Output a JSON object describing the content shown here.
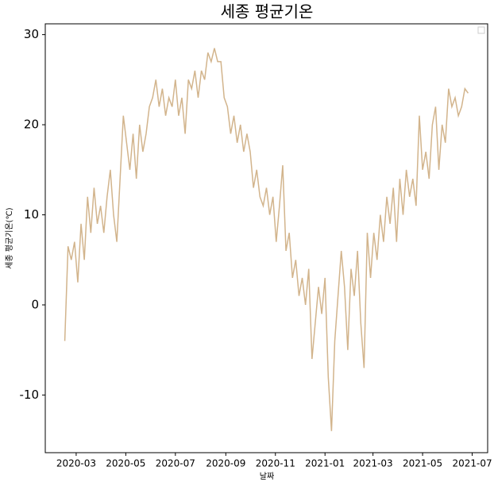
{
  "chart_data": {
    "type": "line",
    "title": "세종 평균기온",
    "xlabel": "날짜",
    "ylabel": "세종 평균기온(℃)",
    "x": [
      "2020-02-16",
      "2020-02-20",
      "2020-02-24",
      "2020-02-28",
      "2020-03-03",
      "2020-03-07",
      "2020-03-11",
      "2020-03-15",
      "2020-03-19",
      "2020-03-23",
      "2020-03-27",
      "2020-03-31",
      "2020-04-04",
      "2020-04-08",
      "2020-04-12",
      "2020-04-16",
      "2020-04-20",
      "2020-04-24",
      "2020-04-28",
      "2020-05-02",
      "2020-05-06",
      "2020-05-10",
      "2020-05-14",
      "2020-05-18",
      "2020-05-22",
      "2020-05-26",
      "2020-05-30",
      "2020-06-03",
      "2020-06-07",
      "2020-06-11",
      "2020-06-15",
      "2020-06-19",
      "2020-06-23",
      "2020-06-27",
      "2020-07-01",
      "2020-07-05",
      "2020-07-09",
      "2020-07-13",
      "2020-07-17",
      "2020-07-21",
      "2020-07-25",
      "2020-07-29",
      "2020-08-02",
      "2020-08-06",
      "2020-08-10",
      "2020-08-14",
      "2020-08-18",
      "2020-08-22",
      "2020-08-26",
      "2020-08-30",
      "2020-09-03",
      "2020-09-07",
      "2020-09-11",
      "2020-09-15",
      "2020-09-19",
      "2020-09-23",
      "2020-09-27",
      "2020-10-01",
      "2020-10-05",
      "2020-10-09",
      "2020-10-13",
      "2020-10-17",
      "2020-10-21",
      "2020-10-25",
      "2020-10-29",
      "2020-11-02",
      "2020-11-06",
      "2020-11-10",
      "2020-11-14",
      "2020-11-18",
      "2020-11-22",
      "2020-11-26",
      "2020-11-30",
      "2020-12-04",
      "2020-12-08",
      "2020-12-12",
      "2020-12-16",
      "2020-12-20",
      "2020-12-24",
      "2020-12-28",
      "2021-01-01",
      "2021-01-05",
      "2021-01-09",
      "2021-01-13",
      "2021-01-17",
      "2021-01-21",
      "2021-01-25",
      "2021-01-29",
      "2021-02-02",
      "2021-02-06",
      "2021-02-10",
      "2021-02-14",
      "2021-02-18",
      "2021-02-22",
      "2021-02-26",
      "2021-03-02",
      "2021-03-06",
      "2021-03-10",
      "2021-03-14",
      "2021-03-18",
      "2021-03-22",
      "2021-03-26",
      "2021-03-30",
      "2021-04-03",
      "2021-04-07",
      "2021-04-11",
      "2021-04-15",
      "2021-04-19",
      "2021-04-23",
      "2021-04-27",
      "2021-05-01",
      "2021-05-05",
      "2021-05-09",
      "2021-05-13",
      "2021-05-17",
      "2021-05-21",
      "2021-05-25",
      "2021-05-29",
      "2021-06-02",
      "2021-06-06",
      "2021-06-10",
      "2021-06-14",
      "2021-06-18",
      "2021-06-22",
      "2021-06-26"
    ],
    "series": [
      {
        "color": "#d2b48c",
        "values": [
          -4,
          6.5,
          5,
          7,
          2.5,
          9,
          5,
          12,
          8,
          13,
          9,
          11,
          8,
          12,
          15,
          10,
          7,
          14,
          21,
          18,
          15,
          19,
          14,
          20,
          17,
          19,
          22,
          23,
          25,
          22,
          24,
          21,
          23,
          22,
          25,
          21,
          23,
          19,
          25,
          24,
          26,
          23,
          26,
          25,
          28,
          27,
          28.5,
          27,
          27,
          23,
          22,
          19,
          21,
          18,
          20,
          17,
          19,
          17,
          13,
          15,
          12,
          11,
          13,
          10,
          12,
          7,
          11,
          15.5,
          6,
          8,
          3,
          5,
          1,
          3,
          0,
          4,
          -6,
          -2,
          2,
          -1,
          3,
          -8,
          -14,
          -4,
          1,
          6,
          2,
          -5,
          4,
          1,
          6,
          -2,
          -7,
          8,
          3,
          8,
          5,
          10,
          7,
          12,
          9,
          13,
          7,
          14,
          10,
          15,
          12,
          14,
          11,
          21,
          15,
          17,
          14,
          20,
          22,
          15,
          20,
          18,
          24,
          22,
          23,
          21,
          22,
          24,
          23.5
        ]
      }
    ],
    "xlim": [
      "2020-01-23",
      "2021-07-20"
    ],
    "xticks": [
      {
        "value": "2020-03-01",
        "label": "2020-03"
      },
      {
        "value": "2020-05-01",
        "label": "2020-05"
      },
      {
        "value": "2020-07-01",
        "label": "2020-07"
      },
      {
        "value": "2020-09-01",
        "label": "2020-09"
      },
      {
        "value": "2020-11-01",
        "label": "2020-11"
      },
      {
        "value": "2021-01-01",
        "label": "2021-01"
      },
      {
        "value": "2021-03-01",
        "label": "2021-03"
      },
      {
        "value": "2021-05-01",
        "label": "2021-05"
      },
      {
        "value": "2021-07-01",
        "label": "2021-07"
      }
    ],
    "ylim": [
      -16.4,
      31.2
    ],
    "yticks": [
      -10,
      0,
      10,
      20,
      30
    ],
    "legend": "upper right"
  }
}
